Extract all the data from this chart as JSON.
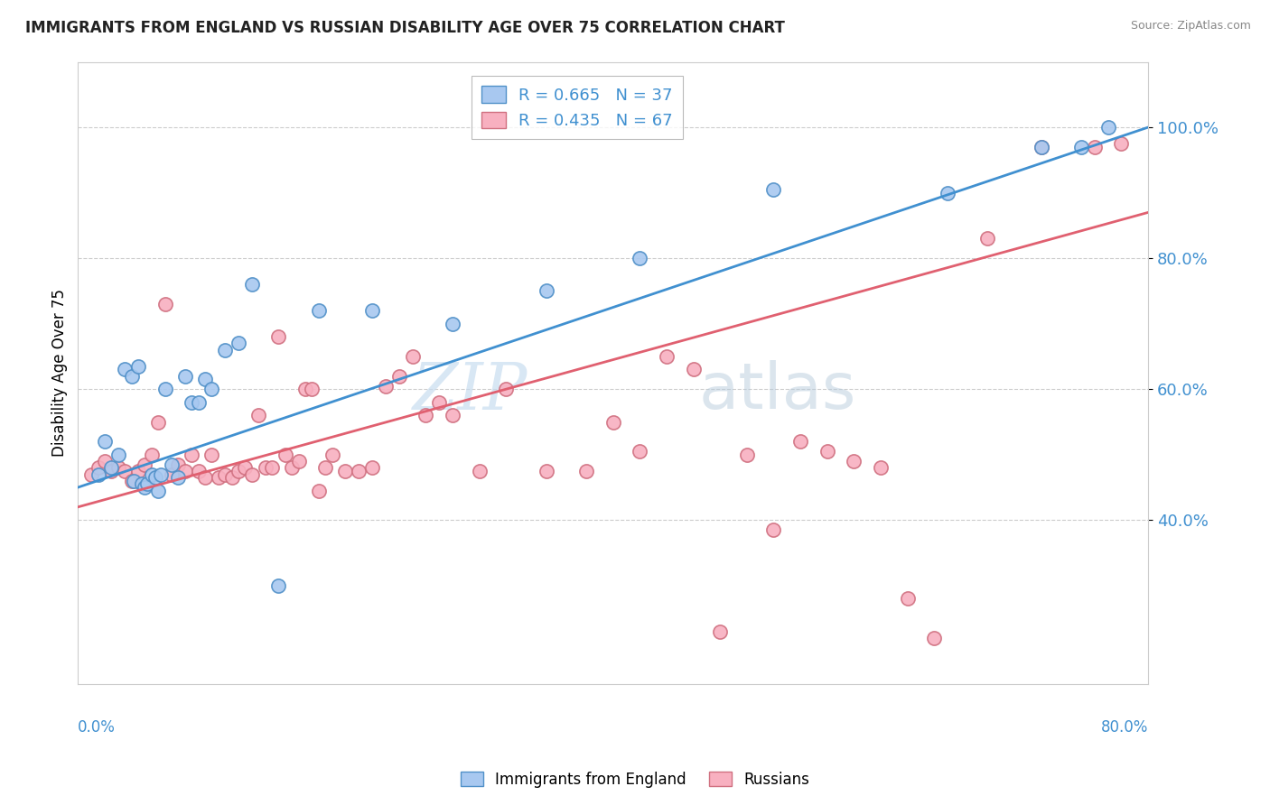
{
  "title": "IMMIGRANTS FROM ENGLAND VS RUSSIAN DISABILITY AGE OVER 75 CORRELATION CHART",
  "source": "Source: ZipAtlas.com",
  "ylabel": "Disability Age Over 75",
  "legend_label1": "Immigrants from England",
  "legend_label2": "Russians",
  "r1": 0.665,
  "n1": 37,
  "r2": 0.435,
  "n2": 67,
  "blue_color": "#A8C8F0",
  "pink_color": "#F8B0C0",
  "blue_line_color": "#4090D0",
  "pink_line_color": "#E06070",
  "blue_edge_color": "#5090C8",
  "pink_edge_color": "#D07080",
  "watermark_zip": "ZIP",
  "watermark_atlas": "atlas",
  "xlim": [
    0.0,
    80.0
  ],
  "ylim": [
    15.0,
    110.0
  ],
  "ytick_vals": [
    40.0,
    60.0,
    80.0,
    100.0
  ],
  "blue_line_x0": 0.0,
  "blue_line_y0": 45.0,
  "blue_line_x1": 80.0,
  "blue_line_y1": 100.0,
  "pink_line_x0": 0.0,
  "pink_line_y0": 42.0,
  "pink_line_x1": 80.0,
  "pink_line_y1": 87.0,
  "blue_scatter_x": [
    1.5,
    2.0,
    2.5,
    3.0,
    3.5,
    4.0,
    4.2,
    4.5,
    4.8,
    5.0,
    5.2,
    5.5,
    5.8,
    6.0,
    6.2,
    6.5,
    7.0,
    7.5,
    8.0,
    8.5,
    9.0,
    9.5,
    10.0,
    11.0,
    12.0,
    13.0,
    15.0,
    18.0,
    22.0,
    28.0,
    35.0,
    42.0,
    52.0,
    65.0,
    72.0,
    75.0,
    77.0
  ],
  "blue_scatter_y": [
    47.0,
    52.0,
    48.0,
    50.0,
    63.0,
    62.0,
    46.0,
    63.5,
    45.5,
    45.0,
    45.5,
    47.0,
    46.5,
    44.5,
    47.0,
    60.0,
    48.5,
    46.5,
    62.0,
    58.0,
    58.0,
    61.5,
    60.0,
    66.0,
    67.0,
    76.0,
    30.0,
    72.0,
    72.0,
    70.0,
    75.0,
    80.0,
    90.5,
    90.0,
    97.0,
    97.0,
    100.0
  ],
  "pink_scatter_x": [
    1.0,
    1.5,
    2.0,
    2.5,
    3.0,
    3.5,
    4.0,
    4.5,
    5.0,
    5.5,
    6.0,
    6.5,
    7.0,
    7.5,
    8.0,
    8.5,
    9.0,
    9.5,
    10.0,
    10.5,
    11.0,
    11.5,
    12.0,
    12.5,
    13.0,
    13.5,
    14.0,
    14.5,
    15.0,
    15.5,
    16.0,
    16.5,
    17.0,
    17.5,
    18.0,
    18.5,
    19.0,
    20.0,
    21.0,
    22.0,
    23.0,
    24.0,
    25.0,
    26.0,
    27.0,
    28.0,
    30.0,
    32.0,
    35.0,
    38.0,
    40.0,
    42.0,
    44.0,
    46.0,
    48.0,
    50.0,
    52.0,
    54.0,
    56.0,
    58.0,
    60.0,
    62.0,
    64.0,
    68.0,
    72.0,
    76.0,
    78.0
  ],
  "pink_scatter_y": [
    47.0,
    48.0,
    49.0,
    47.5,
    48.0,
    47.5,
    46.0,
    47.5,
    48.5,
    50.0,
    55.0,
    73.0,
    47.0,
    48.5,
    47.5,
    50.0,
    47.5,
    46.5,
    50.0,
    46.5,
    47.0,
    46.5,
    47.5,
    48.0,
    47.0,
    56.0,
    48.0,
    48.0,
    68.0,
    50.0,
    48.0,
    49.0,
    60.0,
    60.0,
    44.5,
    48.0,
    50.0,
    47.5,
    47.5,
    48.0,
    60.5,
    62.0,
    65.0,
    56.0,
    58.0,
    56.0,
    47.5,
    60.0,
    47.5,
    47.5,
    55.0,
    50.5,
    65.0,
    63.0,
    23.0,
    50.0,
    38.5,
    52.0,
    50.5,
    49.0,
    48.0,
    28.0,
    22.0,
    83.0,
    97.0,
    97.0,
    97.5
  ]
}
